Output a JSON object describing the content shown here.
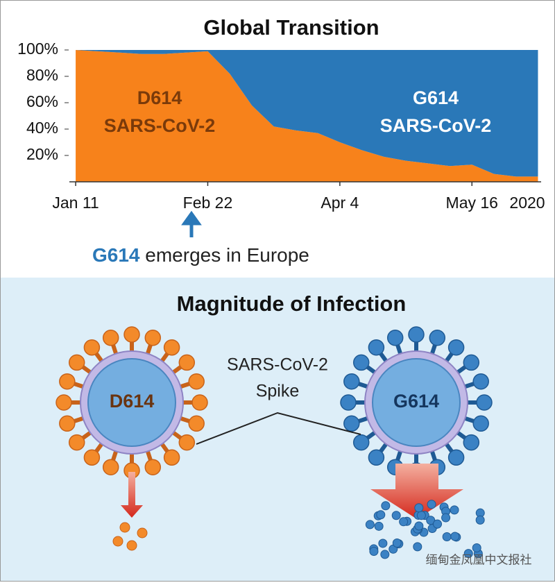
{
  "chart_data": {
    "type": "stacked_area",
    "title": "Global Transition",
    "x": [
      "2020-01-11",
      "2020-01-18",
      "2020-01-25",
      "2020-02-01",
      "2020-02-08",
      "2020-02-15",
      "2020-02-22",
      "2020-02-29",
      "2020-03-07",
      "2020-03-14",
      "2020-03-21",
      "2020-03-28",
      "2020-04-04",
      "2020-04-11",
      "2020-04-18",
      "2020-04-25",
      "2020-05-02",
      "2020-05-09",
      "2020-05-16",
      "2020-05-23",
      "2020-05-30",
      "2020-06-06"
    ],
    "series": [
      {
        "name": "D614",
        "subtitle": "SARS-CoV-2",
        "color": "#f7821b",
        "values": [
          100,
          99,
          98,
          97,
          97,
          98,
          99,
          82,
          58,
          42,
          39,
          37,
          30,
          24,
          19,
          16,
          14,
          12,
          13,
          6,
          4,
          4
        ]
      },
      {
        "name": "G614",
        "subtitle": "SARS-CoV-2",
        "color": "#2a78b8",
        "values": [
          0,
          1,
          2,
          3,
          3,
          2,
          1,
          18,
          42,
          58,
          61,
          63,
          70,
          76,
          81,
          84,
          86,
          88,
          87,
          94,
          96,
          96
        ]
      }
    ],
    "xlim": [
      "2020-01-09",
      "2020-06-07"
    ],
    "xticks": [
      {
        "value": "2020-01-11",
        "label": "Jan 11"
      },
      {
        "value": "2020-02-22",
        "label": "Feb 22"
      },
      {
        "value": "2020-04-04",
        "label": "Apr 4"
      },
      {
        "value": "2020-05-16",
        "label": "May 16"
      }
    ],
    "x_year_label": "2020",
    "ylim": [
      0,
      100
    ],
    "yticks": [
      {
        "value": 20,
        "label": "20%"
      },
      {
        "value": 40,
        "label": "40%"
      },
      {
        "value": 60,
        "label": "60%"
      },
      {
        "value": 80,
        "label": "80%"
      },
      {
        "value": 100,
        "label": "100%"
      }
    ],
    "annotation": {
      "highlight": "G614",
      "text": "emerges in Europe"
    }
  },
  "lower_panel": {
    "title": "Magnitude of Infection",
    "left_virus": "D614",
    "right_virus": "G614",
    "spike_label": [
      "SARS-CoV-2",
      "Spike"
    ]
  },
  "watermark": "缅甸金凤凰中文报社"
}
